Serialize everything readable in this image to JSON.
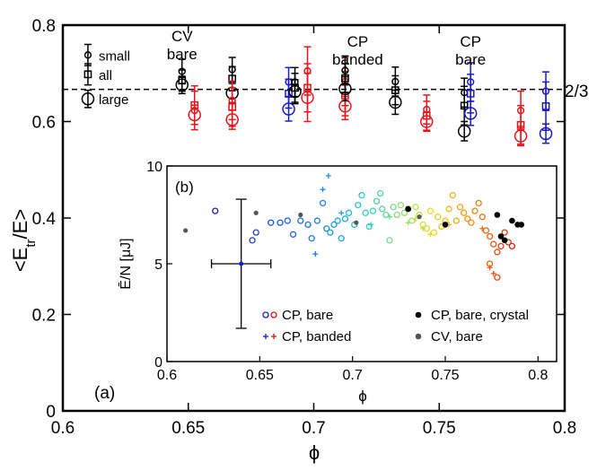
{
  "chart_data": [
    {
      "type": "scatter",
      "title": "",
      "xlabel": "ϕ",
      "ylabel": "<E_tr/E>",
      "xlim": [
        0.6,
        0.8
      ],
      "ylim": [
        0,
        0.8
      ],
      "xticks": [
        "0.6",
        "0.65",
        "0.7",
        "0.75",
        "0.8"
      ],
      "yticks": [
        "0",
        "0.2",
        "0.4",
        "0.6",
        "0.8"
      ],
      "panel_label": "(a)",
      "reference_line": {
        "y": 0.6667,
        "label": "2/3",
        "style": "dashed"
      },
      "legend_markers": [
        "small",
        "all",
        "large"
      ],
      "annotations": [
        {
          "lines": [
            "CV",
            "bare"
          ],
          "color": "#000000"
        },
        {
          "lines": [
            "CP",
            "banded"
          ],
          "color": "#e8141c"
        },
        {
          "lines": [
            "CP",
            "bare"
          ],
          "color": "#1a1acc"
        }
      ],
      "groups": [
        {
          "x": 0.61,
          "color": "#000000",
          "small": [
            0.738,
            0.022
          ],
          "all": [
            0.698,
            0.022
          ],
          "large": [
            0.647,
            0.018
          ]
        },
        {
          "x": 0.6475,
          "color": "#000000",
          "small": [
            0.704,
            0.025
          ],
          "all": [
            0.685,
            0.022
          ],
          "large": [
            0.676,
            0.018
          ]
        },
        {
          "x": 0.6675,
          "color": "#000000",
          "small": [
            0.708,
            0.025
          ],
          "all": [
            0.689,
            0.025
          ],
          "large": [
            0.659,
            0.02
          ]
        },
        {
          "x": 0.6525,
          "color": "#e8141c",
          "small": [
            0.623,
            0.04
          ],
          "all": [
            0.634,
            0.04
          ],
          "large": [
            0.614,
            0.02
          ]
        },
        {
          "x": 0.6675,
          "color": "#e8141c",
          "small": [
            0.644,
            0.04
          ],
          "all": [
            0.63,
            0.04
          ],
          "large": [
            0.604,
            0.02
          ]
        },
        {
          "x": 0.69,
          "color": "#1a1acc",
          "small": [
            0.682,
            0.03
          ],
          "all": [
            0.658,
            0.03
          ],
          "large": [
            0.626,
            0.025
          ]
        },
        {
          "x": 0.6975,
          "color": "#e8141c",
          "small": [
            0.705,
            0.05
          ],
          "all": [
            0.67,
            0.05
          ],
          "large": [
            0.65,
            0.05
          ]
        },
        {
          "x": 0.6925,
          "color": "#000000",
          "small": [
            0.682,
            0.03
          ],
          "all": [
            0.67,
            0.03
          ],
          "large": [
            0.662,
            0.025
          ]
        },
        {
          "x": 0.7125,
          "color": "#e8141c",
          "small": [
            0.683,
            0.05
          ],
          "all": [
            0.654,
            0.05
          ],
          "large": [
            0.632,
            0.02
          ]
        },
        {
          "x": 0.7125,
          "color": "#000000",
          "small": [
            0.706,
            0.03
          ],
          "all": [
            0.69,
            0.03
          ],
          "large": [
            0.668,
            0.025
          ]
        },
        {
          "x": 0.7325,
          "color": "#000000",
          "small": [
            0.683,
            0.03
          ],
          "all": [
            0.665,
            0.03
          ],
          "large": [
            0.64,
            0.025
          ]
        },
        {
          "x": 0.745,
          "color": "#e8141c",
          "small": [
            0.625,
            0.03
          ],
          "all": [
            0.612,
            0.03
          ],
          "large": [
            0.6,
            0.02
          ]
        },
        {
          "x": 0.76,
          "color": "#000000",
          "small": [
            0.66,
            0.03
          ],
          "all": [
            0.633,
            0.04
          ],
          "large": [
            0.58,
            0.02
          ]
        },
        {
          "x": 0.7625,
          "color": "#1a1acc",
          "small": [
            0.682,
            0.04
          ],
          "all": [
            0.658,
            0.04
          ],
          "large": [
            0.617,
            0.025
          ]
        },
        {
          "x": 0.7825,
          "color": "#e8141c",
          "small": [
            0.623,
            0.04
          ],
          "all": [
            0.593,
            0.04
          ],
          "large": [
            0.57,
            0.02
          ]
        },
        {
          "x": 0.7925,
          "color": "#1a1acc",
          "small": [
            0.663,
            0.04
          ],
          "all": [
            0.632,
            0.05
          ],
          "large": [
            0.575,
            0.02
          ]
        }
      ]
    },
    {
      "type": "scatter",
      "title": "",
      "panel_label": "(b)",
      "xlabel": "ϕ",
      "ylabel": "Ē/N [μJ]",
      "xlim": [
        0.6,
        0.81
      ],
      "ylim": [
        0,
        10
      ],
      "xticks": [
        "0.6",
        "0.65",
        "0.7",
        "0.75",
        "0.8"
      ],
      "yticks": [
        "0",
        "5",
        "10"
      ],
      "legend": [
        {
          "marker": "open-circle-pair",
          "label": "CP, bare"
        },
        {
          "marker": "plus-pair",
          "label": "CP, banded"
        },
        {
          "marker": "filled-circle",
          "label": "CP, bare, crystal",
          "color": "#000000"
        },
        {
          "marker": "filled-circle",
          "label": "CV, bare",
          "color": "#555555"
        }
      ],
      "errorbar": {
        "x": 0.64,
        "y": 5.0,
        "xerr": 0.016,
        "yerr_low": 3.3,
        "yerr_high": 3.3
      },
      "points_cp_bare": [
        [
          0.626,
          7.7
        ],
        [
          0.646,
          6.2
        ],
        [
          0.648,
          6.6
        ],
        [
          0.656,
          7.1
        ],
        [
          0.661,
          7.1
        ],
        [
          0.665,
          7.2
        ],
        [
          0.668,
          6.5
        ],
        [
          0.672,
          7.2
        ],
        [
          0.676,
          7.0
        ],
        [
          0.678,
          6.3
        ],
        [
          0.681,
          7.2
        ],
        [
          0.684,
          8.1
        ],
        [
          0.686,
          6.8
        ],
        [
          0.688,
          6.6
        ],
        [
          0.69,
          7.0
        ],
        [
          0.692,
          7.2
        ],
        [
          0.694,
          6.3
        ],
        [
          0.696,
          7.3
        ],
        [
          0.698,
          7.6
        ],
        [
          0.701,
          7.0
        ],
        [
          0.703,
          8.0
        ],
        [
          0.705,
          8.5
        ],
        [
          0.707,
          7.6
        ],
        [
          0.709,
          6.9
        ],
        [
          0.711,
          7.7
        ],
        [
          0.713,
          8.2
        ],
        [
          0.715,
          8.6
        ],
        [
          0.716,
          7.8
        ],
        [
          0.718,
          7.5
        ],
        [
          0.72,
          6.2
        ],
        [
          0.722,
          7.9
        ],
        [
          0.724,
          7.5
        ],
        [
          0.726,
          8.0
        ],
        [
          0.728,
          7.6
        ],
        [
          0.73,
          7.8
        ],
        [
          0.732,
          7.2
        ],
        [
          0.734,
          7.9
        ],
        [
          0.736,
          7.5
        ],
        [
          0.738,
          7.0
        ],
        [
          0.74,
          6.8
        ],
        [
          0.742,
          7.7
        ],
        [
          0.744,
          6.6
        ],
        [
          0.746,
          7.4
        ],
        [
          0.748,
          6.9
        ],
        [
          0.75,
          7.2
        ],
        [
          0.752,
          7.8
        ],
        [
          0.754,
          8.5
        ],
        [
          0.756,
          7.2
        ],
        [
          0.758,
          7.9
        ],
        [
          0.76,
          7.6
        ],
        [
          0.762,
          7.3
        ],
        [
          0.764,
          7.1
        ],
        [
          0.766,
          7.7
        ],
        [
          0.768,
          8.1
        ],
        [
          0.77,
          7.4
        ],
        [
          0.772,
          6.7
        ],
        [
          0.774,
          6.4
        ],
        [
          0.776,
          6.0
        ],
        [
          0.778,
          5.6
        ],
        [
          0.78,
          5.9
        ],
        [
          0.782,
          6.6
        ],
        [
          0.784,
          6.1
        ],
        [
          0.786,
          5.9
        ],
        [
          0.774,
          5.0
        ],
        [
          0.778,
          4.3
        ]
      ],
      "points_cp_banded": [
        [
          0.68,
          5.5
        ],
        [
          0.684,
          8.8
        ],
        [
          0.687,
          9.5
        ],
        [
          0.694,
          7.6
        ],
        [
          0.71,
          7.0
        ],
        [
          0.72,
          7.4
        ],
        [
          0.73,
          7.1
        ],
        [
          0.734,
          7.3
        ],
        [
          0.738,
          6.8
        ],
        [
          0.742,
          6.5
        ],
        [
          0.752,
          7.0
        ],
        [
          0.77,
          6.8
        ],
        [
          0.774,
          4.8
        ],
        [
          0.776,
          4.5
        ]
      ],
      "points_cp_crystal": [
        [
          0.73,
          7.8
        ],
        [
          0.75,
          7.0
        ],
        [
          0.778,
          7.5
        ],
        [
          0.78,
          6.4
        ],
        [
          0.782,
          6.2
        ],
        [
          0.786,
          7.2
        ],
        [
          0.789,
          7.0
        ],
        [
          0.791,
          7.0
        ]
      ],
      "points_cv_bare": [
        [
          0.61,
          6.7
        ],
        [
          0.648,
          7.6
        ],
        [
          0.672,
          7.5
        ],
        [
          0.702,
          7.1
        ],
        [
          0.736,
          7.4
        ]
      ]
    }
  ]
}
